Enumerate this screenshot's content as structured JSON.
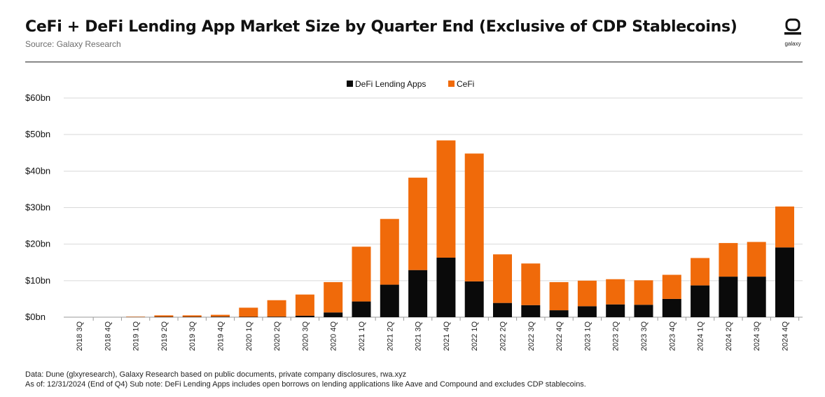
{
  "header": {
    "title": "CeFi + DeFi Lending App Market Size by Quarter End (Exclusive of CDP Stablecoins)",
    "subtitle": "Source: Galaxy Research",
    "logo_text": "galaxy"
  },
  "footer": {
    "line1": "Data: Dune (glxyresearch), Galaxy Research based on public documents, private company disclosures, rwa.xyz",
    "line2": "As of: 12/31/2024 (End of Q4)   Sub note: DeFi Lending Apps includes open borrows on lending applications like Aave and Compound and excludes CDP stablecoins."
  },
  "colors": {
    "defi": "#0a0a0a",
    "cefi": "#f06a0a",
    "grid": "#d9d9d9"
  },
  "chart_data": {
    "type": "bar",
    "stacked": true,
    "categories": [
      "2018 3Q",
      "2018 4Q",
      "2019 1Q",
      "2019 2Q",
      "2019 3Q",
      "2019 4Q",
      "2020 1Q",
      "2020 2Q",
      "2020 3Q",
      "2020 4Q",
      "2021 1Q",
      "2021 2Q",
      "2021 3Q",
      "2021 4Q",
      "2022 1Q",
      "2022 2Q",
      "2022 3Q",
      "2022 4Q",
      "2023 1Q",
      "2023 2Q",
      "2023 3Q",
      "2023 4Q",
      "2024 1Q",
      "2024 2Q",
      "2024 3Q",
      "2024 4Q"
    ],
    "series": [
      {
        "name": "DeFi Lending Apps",
        "values": [
          0,
          0,
          0.05,
          0.1,
          0.1,
          0.15,
          0.1,
          0.15,
          0.4,
          1.3,
          4.3,
          8.9,
          12.9,
          16.3,
          9.8,
          3.9,
          3.3,
          1.9,
          3.0,
          3.5,
          3.4,
          5.0,
          8.7,
          11.1,
          11.1,
          19.1
        ]
      },
      {
        "name": "CeFi",
        "values": [
          0,
          0,
          0.1,
          0.4,
          0.4,
          0.5,
          2.5,
          4.5,
          5.8,
          8.3,
          15.0,
          18.0,
          25.3,
          32.1,
          35.0,
          13.3,
          11.4,
          7.7,
          7.0,
          6.9,
          6.7,
          6.6,
          7.5,
          9.2,
          9.5,
          11.2
        ]
      }
    ],
    "y_tick_labels": [
      "$0bn",
      "$10bn",
      "$20bn",
      "$30bn",
      "$40bn",
      "$50bn",
      "$60bn"
    ],
    "ylim": [
      0,
      60
    ],
    "grid": true,
    "legend_position": "top-center"
  }
}
